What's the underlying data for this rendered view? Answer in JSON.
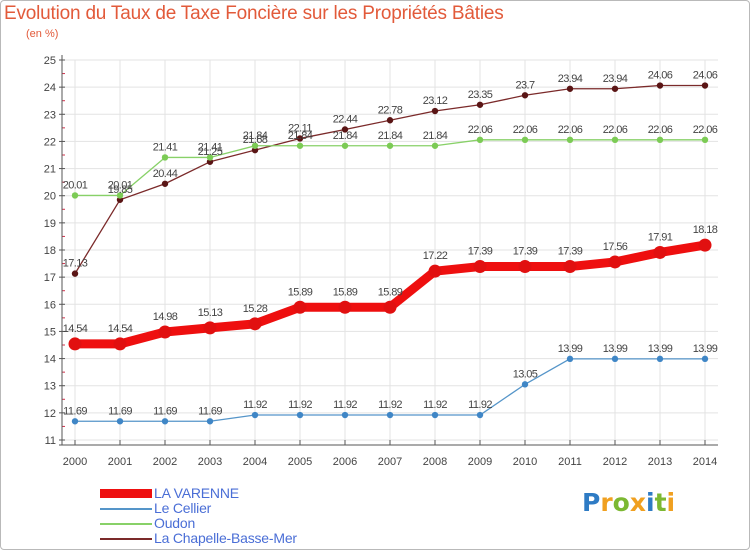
{
  "title": "Evolution du Taux de Taxe Foncière sur les Propriétés Bâties",
  "subtitle": "(en %)",
  "logo": {
    "text": "Proxiti",
    "letters": [
      {
        "ch": "P",
        "color": "#2e7bc4"
      },
      {
        "ch": "r",
        "color": "#f0a020"
      },
      {
        "ch": "o",
        "color": "#7cb832"
      },
      {
        "ch": "x",
        "color": "#f0a020"
      },
      {
        "ch": "i",
        "color": "#2e7bc4"
      },
      {
        "ch": "t",
        "color": "#7cb832"
      },
      {
        "ch": "i",
        "color": "#f0a020"
      }
    ]
  },
  "colors": {
    "axis": "#555555",
    "tick_dash": "#d0304a",
    "grid": "#e3e3e3",
    "label": "#444444",
    "title": "#e25a3a",
    "legend_text": "#4a6ed6"
  },
  "chart_data": {
    "type": "line",
    "title": "Evolution du Taux de Taxe Foncière sur les Propriétés Bâties",
    "subtitle": "(en %)",
    "xlabel": "",
    "ylabel": "",
    "ylim": [
      11,
      25
    ],
    "yticks": [
      11,
      12,
      13,
      14,
      15,
      16,
      17,
      18,
      19,
      20,
      21,
      22,
      23,
      24,
      25
    ],
    "grid": true,
    "legend_placement": "bottom-left",
    "x": [
      "2000",
      "2001",
      "2002",
      "2003",
      "2004",
      "2005",
      "2006",
      "2007",
      "2008",
      "2009",
      "2010",
      "2011",
      "2012",
      "2013",
      "2014"
    ],
    "series": [
      {
        "name": "La Chapelle-Basse-Mer",
        "color": "#7b2a2a",
        "marker": "#5a1515",
        "values": [
          17.13,
          19.85,
          20.44,
          21.25,
          21.68,
          22.11,
          22.44,
          22.78,
          23.12,
          23.35,
          23.7,
          23.94,
          23.94,
          24.06,
          24.06
        ],
        "labels": [
          "17.13",
          "19.85",
          "20.44",
          "21.25",
          "21.68",
          "22.11",
          "22.44",
          "22.78",
          "23.12",
          "23.35",
          "23.7",
          "23.94",
          "23.94",
          "24.06",
          "24.06"
        ]
      },
      {
        "name": "Oudon",
        "color": "#88d168",
        "marker": "#7ccb55",
        "values": [
          20.01,
          20.01,
          21.41,
          21.41,
          21.84,
          21.84,
          21.84,
          21.84,
          21.84,
          22.06,
          22.06,
          22.06,
          22.06,
          22.06,
          22.06
        ],
        "labels": [
          "20.01",
          "20.01",
          "21.41",
          "21.41",
          "21.84",
          "21.84",
          "21.84",
          "21.84",
          "21.84",
          "22.06",
          "22.06",
          "22.06",
          "22.06",
          "22.06",
          "22.06"
        ]
      },
      {
        "name": "Le Cellier",
        "color": "#5595c9",
        "marker": "#3f86c6",
        "values": [
          11.69,
          11.69,
          11.69,
          11.69,
          11.92,
          11.92,
          11.92,
          11.92,
          11.92,
          11.92,
          13.05,
          13.99,
          13.99,
          13.99,
          13.99
        ],
        "labels": [
          "11.69",
          "11.69",
          "11.69",
          "11.69",
          "11.92",
          "11.92",
          "11.92",
          "11.92",
          "11.92",
          "11.92",
          "13.05",
          "13.99",
          "13.99",
          "13.99",
          "13.99"
        ]
      },
      {
        "name": "LA VARENNE",
        "color": "#ee0f0f",
        "marker": "#e11010",
        "values": [
          14.54,
          14.54,
          14.98,
          15.13,
          15.28,
          15.89,
          15.89,
          15.89,
          17.22,
          17.39,
          17.39,
          17.39,
          17.56,
          17.91,
          18.18
        ],
        "labels": [
          "14.54",
          "14.54",
          "14.98",
          "15.13",
          "15.28",
          "15.89",
          "15.89",
          "15.89",
          "17.22",
          "17.39",
          "17.39",
          "17.39",
          "17.56",
          "17.91",
          "18.18"
        ]
      }
    ],
    "legend": [
      "LA VARENNE",
      "Le Cellier",
      "Oudon",
      "La Chapelle-Basse-Mer"
    ]
  }
}
